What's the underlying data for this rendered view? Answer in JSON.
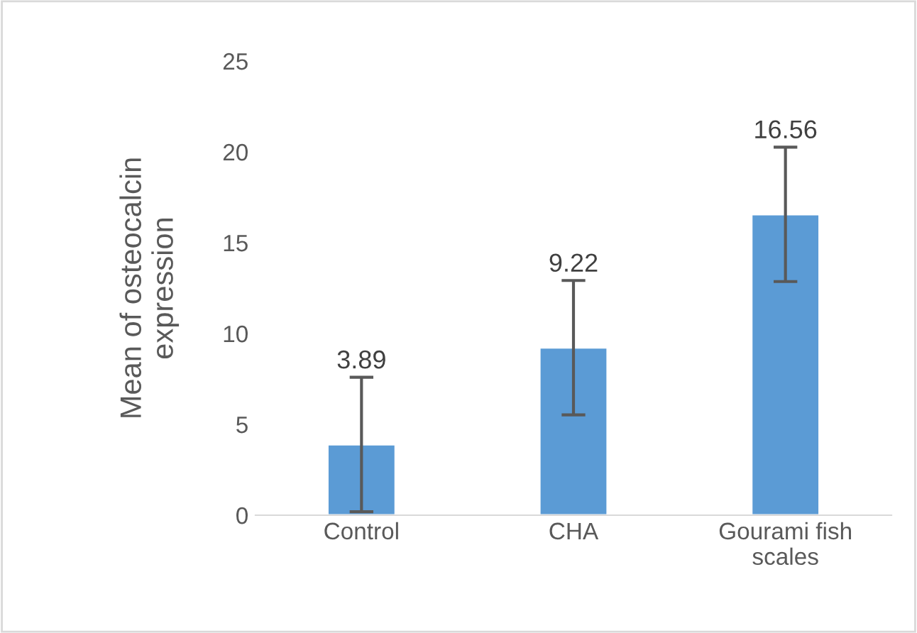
{
  "chart_data": {
    "type": "bar",
    "ylabel": "Mean of osteocalcin\nexpression",
    "categories": [
      "Control",
      "CHA",
      "Gourami fish\nscales"
    ],
    "values": [
      3.89,
      9.22,
      16.56
    ],
    "color": "#5b9bd5",
    "errors": [
      3.7,
      3.7,
      3.7
    ],
    "data_labels": true,
    "ylim": [
      0,
      25
    ],
    "yticks": [
      0,
      5,
      10,
      15,
      20,
      25
    ],
    "grid": false
  }
}
